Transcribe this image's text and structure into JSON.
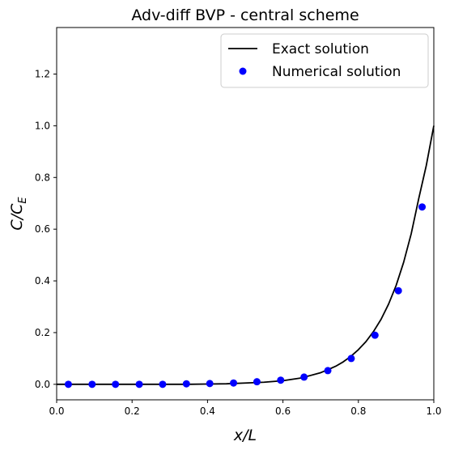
{
  "chart_data": {
    "type": "line",
    "title": "Adv-diff BVP - central scheme",
    "xlabel": {
      "main": "x/L",
      "sub": ""
    },
    "ylabel": {
      "main": "C/C",
      "sub": "E"
    },
    "xlim": [
      0.0,
      1.0
    ],
    "ylim": [
      -0.06,
      1.38
    ],
    "xticks": [
      {
        "value": 0.0,
        "label": "0.0"
      },
      {
        "value": 0.2,
        "label": "0.2"
      },
      {
        "value": 0.4,
        "label": "0.4"
      },
      {
        "value": 0.6,
        "label": "0.6"
      },
      {
        "value": 0.8,
        "label": "0.8"
      },
      {
        "value": 1.0,
        "label": "1.0"
      }
    ],
    "yticks": [
      {
        "value": 0.0,
        "label": "0.0"
      },
      {
        "value": 0.2,
        "label": "0.2"
      },
      {
        "value": 0.4,
        "label": "0.4"
      },
      {
        "value": 0.6,
        "label": "0.6"
      },
      {
        "value": 0.8,
        "label": "0.8"
      },
      {
        "value": 1.0,
        "label": "1.0"
      },
      {
        "value": 1.2,
        "label": "1.2"
      }
    ],
    "grid": false,
    "legend": {
      "position": "top-right"
    },
    "series": [
      {
        "name": "Exact solution",
        "kind": "line",
        "color": "#000000",
        "x": [
          0.0,
          0.05,
          0.1,
          0.15,
          0.2,
          0.25,
          0.3,
          0.35,
          0.4,
          0.45,
          0.5,
          0.55,
          0.6,
          0.65,
          0.7,
          0.72,
          0.74,
          0.76,
          0.78,
          0.8,
          0.82,
          0.84,
          0.86,
          0.88,
          0.9,
          0.92,
          0.94,
          0.96,
          0.98,
          1.0
        ],
        "y": [
          0.0,
          0.0,
          0.0,
          0.0,
          0.0,
          0.0,
          0.0,
          0.0,
          0.001,
          0.002,
          0.005,
          0.008,
          0.014,
          0.025,
          0.045,
          0.057,
          0.07,
          0.087,
          0.108,
          0.134,
          0.165,
          0.204,
          0.251,
          0.31,
          0.382,
          0.472,
          0.582,
          0.718,
          0.846,
          1.0
        ]
      },
      {
        "name": "Numerical solution",
        "kind": "scatter",
        "color": "#0000ff",
        "x": [
          0.031,
          0.094,
          0.156,
          0.219,
          0.281,
          0.344,
          0.406,
          0.469,
          0.531,
          0.594,
          0.656,
          0.719,
          0.781,
          0.844,
          0.906,
          0.969
        ],
        "y": [
          0.0,
          0.0,
          0.0,
          0.0,
          0.0,
          0.002,
          0.003,
          0.005,
          0.01,
          0.016,
          0.028,
          0.053,
          0.1,
          0.19,
          0.362,
          0.686
        ]
      }
    ]
  }
}
